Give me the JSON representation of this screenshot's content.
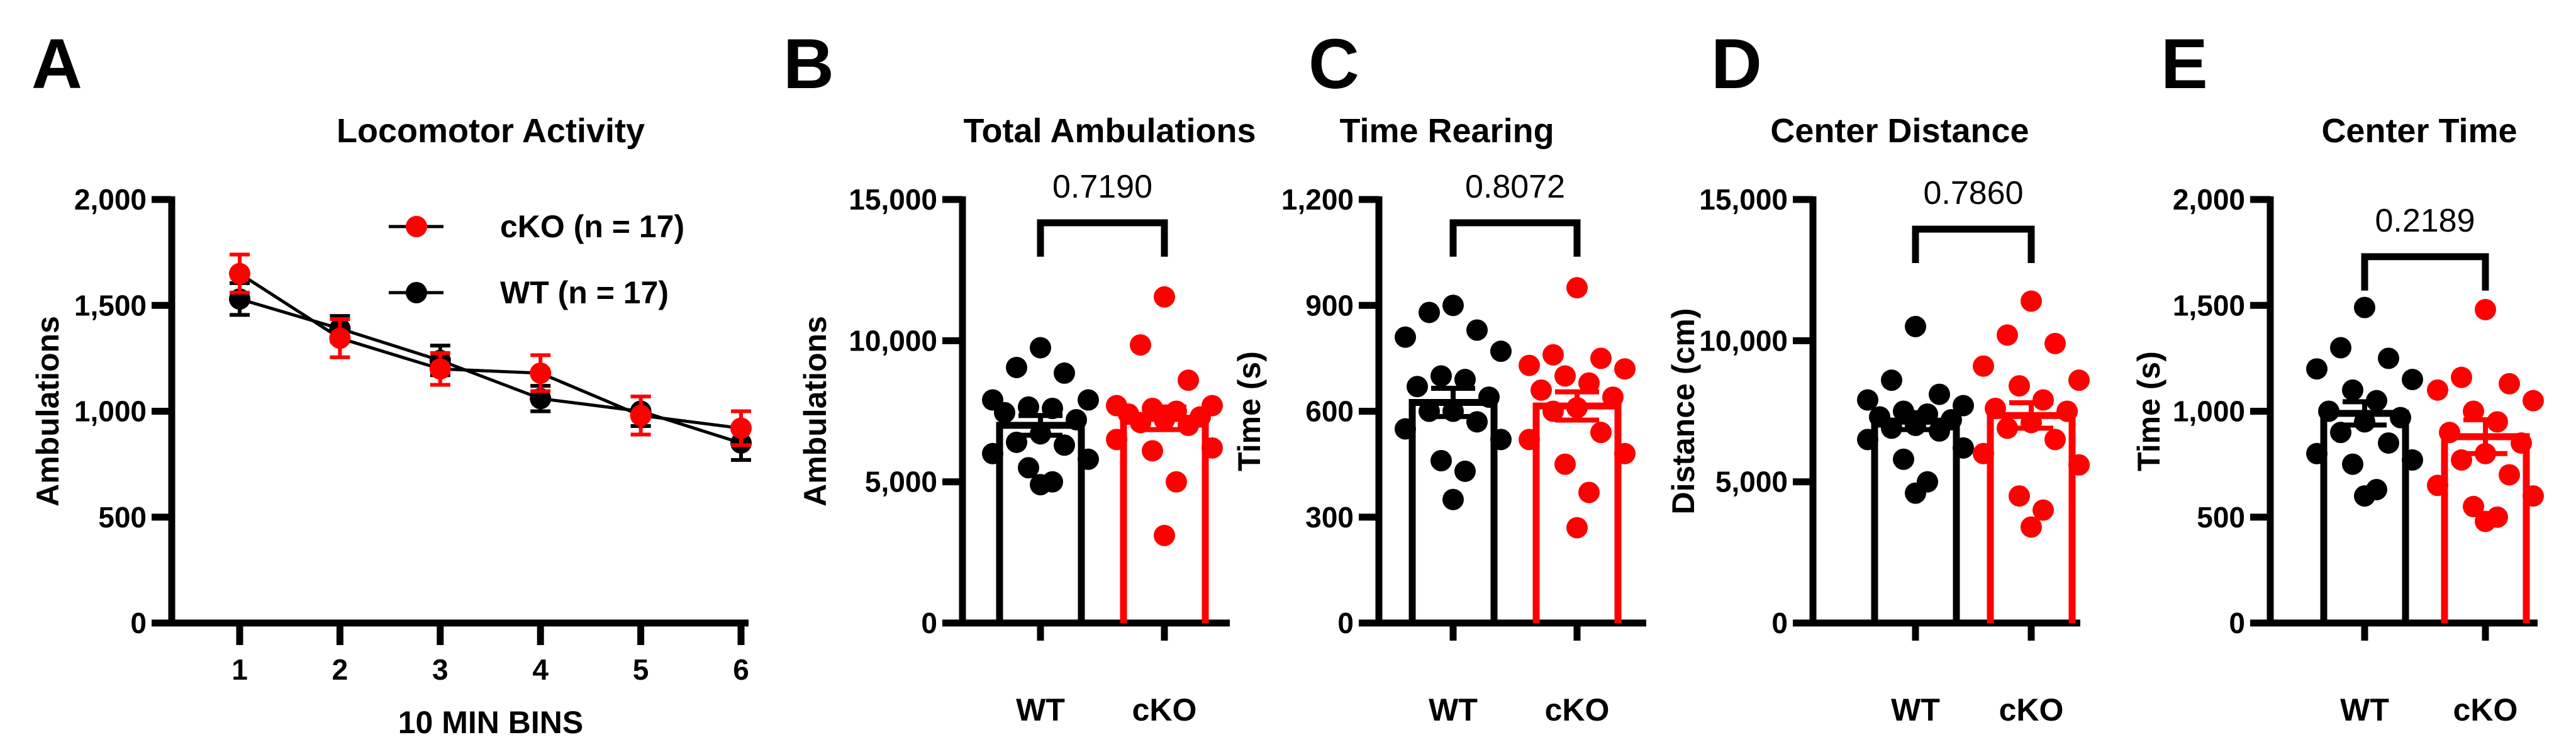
{
  "colors": {
    "wt": "#000000",
    "cko": "#ff0000"
  },
  "chart_data": [
    {
      "type": "line",
      "panel_letter": "A",
      "title": "Locomotor Activity",
      "xlabel": "10 MIN BINS",
      "ylabel": "Ambulations",
      "ylim": [
        0,
        2000
      ],
      "yticks": [
        0,
        500,
        1000,
        1500,
        2000
      ],
      "ytick_labels": [
        "0",
        "500",
        "1,000",
        "1,500",
        "2,000"
      ],
      "x": [
        1,
        2,
        3,
        4,
        5,
        6
      ],
      "xtick_labels": [
        "1",
        "2",
        "3",
        "4",
        "5",
        "6"
      ],
      "legend_position": "top-right",
      "series": [
        {
          "name": "cKO (n = 17)",
          "color": "#ff0000",
          "values": [
            1650,
            1345,
            1200,
            1180,
            980,
            920
          ],
          "sem": [
            90,
            90,
            75,
            85,
            90,
            80
          ]
        },
        {
          "name": "WT (n = 17)",
          "color": "#000000",
          "values": [
            1530,
            1390,
            1240,
            1060,
            1000,
            850
          ],
          "sem": [
            75,
            60,
            70,
            60,
            70,
            80
          ]
        }
      ]
    },
    {
      "type": "bar",
      "panel_letter": "B",
      "title": "Total Ambulations",
      "ylabel": "Ambulations",
      "ylim": [
        0,
        15000
      ],
      "yticks": [
        0,
        5000,
        10000,
        15000
      ],
      "ytick_labels": [
        "0",
        "5,000",
        "10,000",
        "15,000"
      ],
      "categories": [
        "WT",
        "cKO"
      ],
      "p_value": "0.7190",
      "series": [
        {
          "name": "WT",
          "mean": 7000,
          "sem": 350,
          "points": [
            9750,
            9050,
            8850,
            7900,
            7900,
            7650,
            7600,
            7450,
            7200,
            6700,
            6400,
            6300,
            6000,
            5800,
            5500,
            5000,
            4900
          ]
        },
        {
          "name": "cKO",
          "mean": 7250,
          "sem": 400,
          "points": [
            11550,
            9850,
            8600,
            7700,
            7700,
            7600,
            7500,
            7400,
            7300,
            7200,
            7100,
            7000,
            6500,
            6200,
            6100,
            5000,
            3100
          ]
        }
      ]
    },
    {
      "type": "bar",
      "panel_letter": "C",
      "title": "Time Rearing",
      "ylabel": "Time (s)",
      "ylim": [
        0,
        1200
      ],
      "yticks": [
        0,
        300,
        600,
        900,
        1200
      ],
      "ytick_labels": [
        "0",
        "300",
        "600",
        "900",
        "1,200"
      ],
      "categories": [
        "WT",
        "cKO"
      ],
      "p_value": "0.8072",
      "series": [
        {
          "name": "WT",
          "mean": 625,
          "sem": 40,
          "points": [
            900,
            880,
            830,
            810,
            770,
            700,
            690,
            670,
            640,
            600,
            600,
            570,
            550,
            520,
            460,
            430,
            350
          ]
        },
        {
          "name": "cKO",
          "mean": 615,
          "sem": 40,
          "points": [
            950,
            760,
            750,
            730,
            720,
            700,
            680,
            660,
            640,
            610,
            600,
            540,
            520,
            480,
            450,
            370,
            270
          ]
        }
      ]
    },
    {
      "type": "bar",
      "panel_letter": "D",
      "title": "Center Distance",
      "ylabel": "Distance (cm)",
      "ylim": [
        0,
        15000
      ],
      "yticks": [
        0,
        5000,
        10000,
        15000
      ],
      "ytick_labels": [
        "0",
        "5,000",
        "10,000",
        "15,000"
      ],
      "categories": [
        "WT",
        "cKO"
      ],
      "p_value": "0.7860",
      "series": [
        {
          "name": "WT",
          "mean": 7150,
          "sem": 300,
          "points": [
            10500,
            8600,
            8100,
            7900,
            7700,
            7500,
            7400,
            7300,
            7200,
            7000,
            6900,
            6800,
            6500,
            6200,
            5800,
            5000,
            4600
          ]
        },
        {
          "name": "cKO",
          "mean": 7350,
          "sem": 450,
          "points": [
            11400,
            10200,
            9900,
            9100,
            8600,
            8400,
            7900,
            7600,
            7500,
            7100,
            6900,
            6500,
            6000,
            5600,
            4500,
            4000,
            3400
          ]
        }
      ]
    },
    {
      "type": "bar",
      "panel_letter": "E",
      "title": "Center Time",
      "ylabel": "Time (s)",
      "ylim": [
        0,
        2000
      ],
      "yticks": [
        0,
        500,
        1000,
        1500,
        2000
      ],
      "ytick_labels": [
        "0",
        "500",
        "1,000",
        "1,500",
        "2,000"
      ],
      "categories": [
        "WT",
        "cKO"
      ],
      "p_value": "0.2189",
      "series": [
        {
          "name": "WT",
          "mean": 990,
          "sem": 55,
          "points": [
            1490,
            1300,
            1250,
            1200,
            1150,
            1100,
            1050,
            1000,
            970,
            950,
            900,
            850,
            800,
            770,
            750,
            630,
            600
          ]
        },
        {
          "name": "cKO",
          "mean": 880,
          "sem": 80,
          "points": [
            1480,
            1160,
            1130,
            1100,
            1050,
            1000,
            950,
            900,
            850,
            800,
            770,
            700,
            650,
            600,
            550,
            500,
            480
          ]
        }
      ]
    }
  ]
}
